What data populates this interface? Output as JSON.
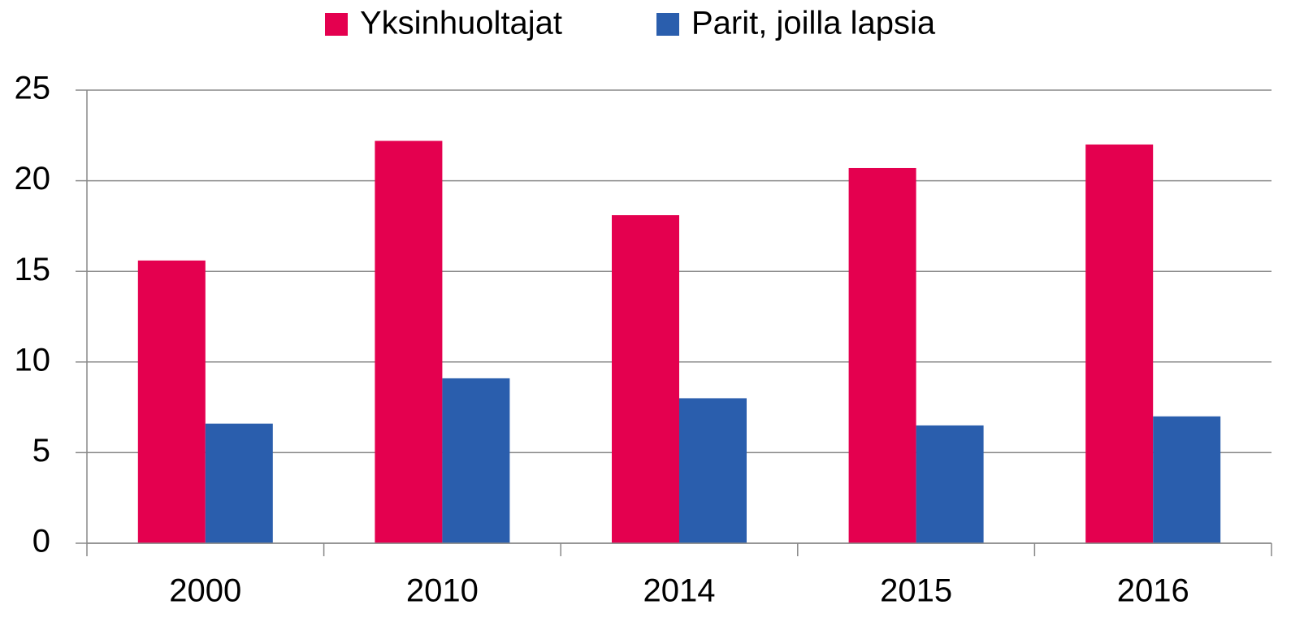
{
  "chart_data": {
    "type": "bar",
    "categories": [
      "2000",
      "2010",
      "2014",
      "2015",
      "2016"
    ],
    "series": [
      {
        "name": "Yksinhuoltajat",
        "color": "#e4004f",
        "values": [
          15.6,
          22.2,
          18.1,
          20.7,
          22.0
        ]
      },
      {
        "name": "Parit, joilla lapsia",
        "color": "#2a5ead",
        "values": [
          6.6,
          9.1,
          8.0,
          6.5,
          7.0
        ]
      }
    ],
    "ylim": [
      0,
      25
    ],
    "yticks": [
      0,
      5,
      10,
      15,
      20,
      25
    ],
    "grid": true,
    "legend": "top"
  }
}
